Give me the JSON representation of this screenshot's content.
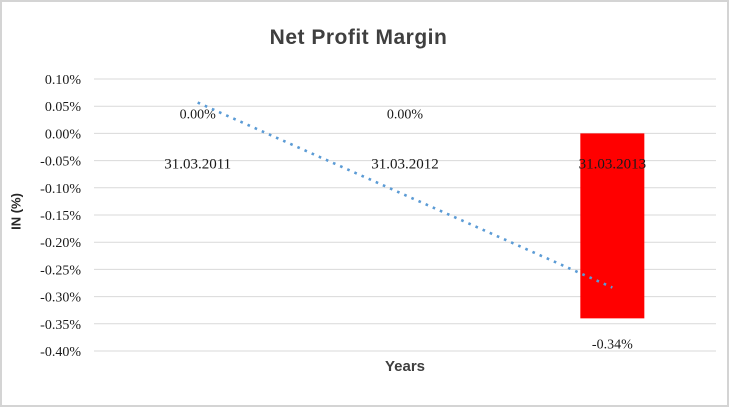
{
  "chart_data": {
    "type": "bar",
    "title": "Net Profit Margin",
    "xlabel": "Years",
    "ylabel": "IN (%)",
    "categories": [
      "31.03.2011",
      "31.03.2012",
      "31.03.2013"
    ],
    "values": [
      0.0,
      0.0,
      -0.34
    ],
    "data_labels": [
      "0.00%",
      "0.00%",
      "-0.34%"
    ],
    "ytick_labels": [
      "0.10%",
      "0.05%",
      "0.00%",
      "-0.05%",
      "-0.10%",
      "-0.15%",
      "-0.20%",
      "-0.25%",
      "-0.30%",
      "-0.35%",
      "-0.40%"
    ],
    "ylim": [
      -0.4,
      0.1
    ],
    "ytick_step": 0.05,
    "grid": true,
    "legend": "none",
    "bar_color": "#ff0000",
    "gridline_color": "#d9d9d9",
    "trendline": {
      "type": "linear",
      "style": "dotted",
      "color": "#5b9bd5",
      "start_value": 0.0567,
      "end_value": -0.2833
    }
  }
}
